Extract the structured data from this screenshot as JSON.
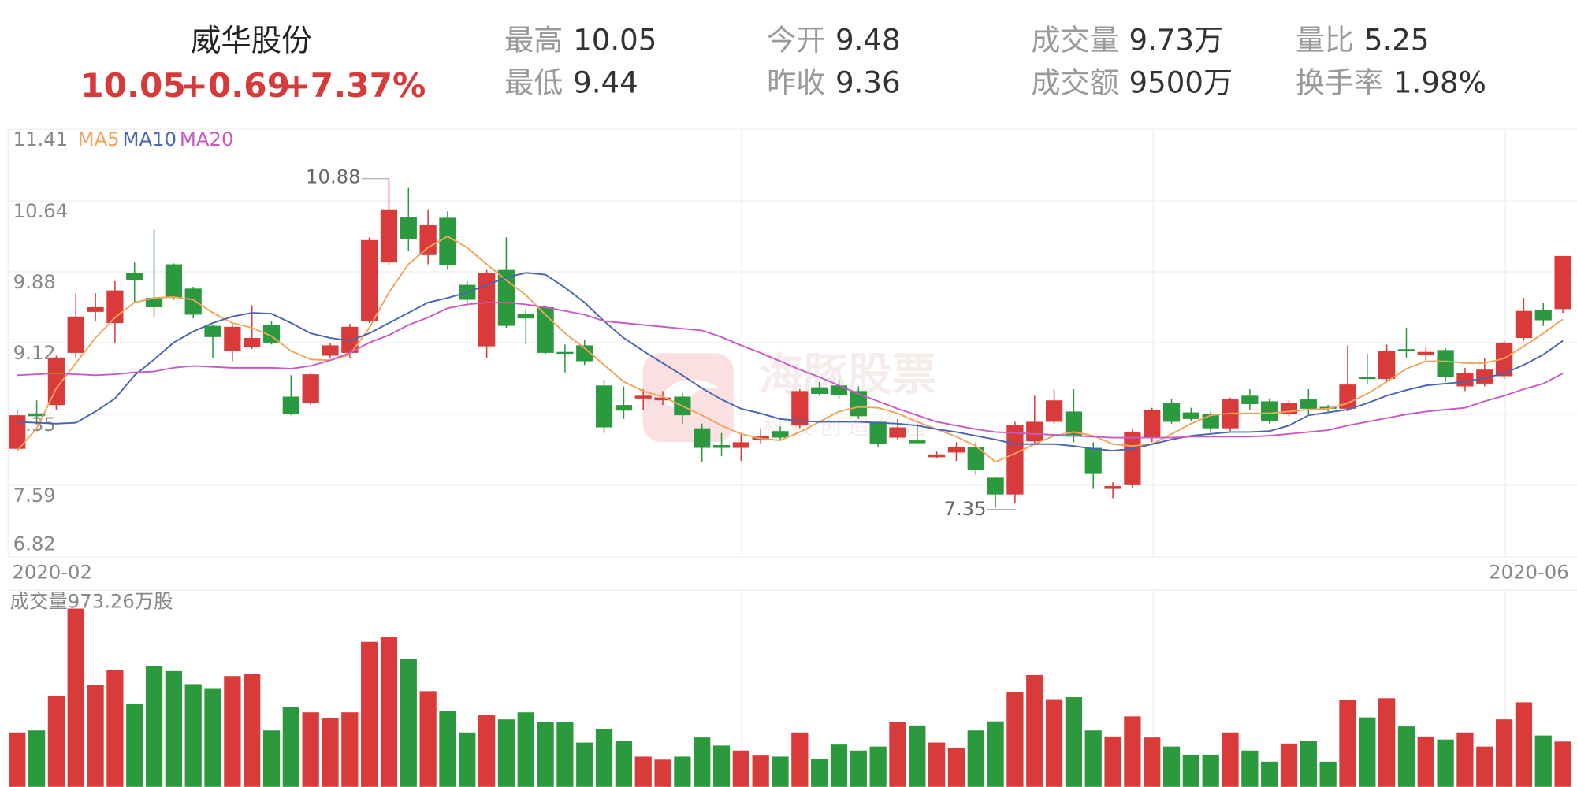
{
  "header": {
    "name": "威华股份",
    "price": "10.05",
    "change": "+0.69",
    "change_pct": "+7.37%",
    "stats": [
      {
        "label": "最高",
        "value": "10.05"
      },
      {
        "label": "最低",
        "value": "9.44"
      },
      {
        "label": "今开",
        "value": "9.48"
      },
      {
        "label": "昨收",
        "value": "9.36"
      },
      {
        "label": "成交量",
        "value": "9.73万"
      },
      {
        "label": "成交额",
        "value": "9500万"
      },
      {
        "label": "量比",
        "value": "5.25"
      },
      {
        "label": "换手率",
        "value": "1.98%"
      }
    ]
  },
  "watermark": {
    "title": "海豚股票",
    "subtitle": "科技创造价值"
  },
  "chart_data": {
    "type": "candlestick",
    "up_color": "#d93a3a",
    "down_color": "#2b9a3f",
    "ylim": [
      6.82,
      11.41
    ],
    "yticks": [
      11.41,
      10.64,
      9.88,
      9.12,
      8.35,
      7.59,
      6.82
    ],
    "grid": true,
    "x_labels": [
      "2020-02",
      "2020-06"
    ],
    "high_label": 10.88,
    "low_label": 7.35,
    "open": [
      7.98,
      8.36,
      8.45,
      9.01,
      9.45,
      9.33,
      9.87,
      9.6,
      9.96,
      9.7,
      9.3,
      9.03,
      9.07,
      9.31,
      8.54,
      8.47,
      8.98,
      9.01,
      9.35,
      9.98,
      10.47,
      10.06,
      10.46,
      9.74,
      9.08,
      9.9,
      9.43,
      9.5,
      9.02,
      9.09,
      8.66,
      8.45,
      8.52,
      8.5,
      8.54,
      8.2,
      8.02,
      7.99,
      8.07,
      8.17,
      8.23,
      8.64,
      8.66,
      8.6,
      8.27,
      8.1,
      8.07,
      7.89,
      7.94,
      8.0,
      7.67,
      7.49,
      8.06,
      8.27,
      8.38,
      7.99,
      7.55,
      7.59,
      8.1,
      8.47,
      8.37,
      8.35,
      8.2,
      8.55,
      8.49,
      8.35,
      8.51,
      8.43,
      8.41,
      8.75,
      8.73,
      9.05,
      8.99,
      9.04,
      8.65,
      8.68,
      8.76,
      9.17,
      9.47,
      9.48
    ],
    "close": [
      8.34,
      8.33,
      8.96,
      9.4,
      9.5,
      9.68,
      9.79,
      9.5,
      9.6,
      9.42,
      9.18,
      9.29,
      9.17,
      9.12,
      8.35,
      8.78,
      9.09,
      9.29,
      10.22,
      10.55,
      10.23,
      10.38,
      9.95,
      9.58,
      9.87,
      9.3,
      9.38,
      9.01,
      9.0,
      8.92,
      8.21,
      8.39,
      8.55,
      8.53,
      8.34,
      7.99,
      7.99,
      8.05,
      8.12,
      8.1,
      8.6,
      8.57,
      8.56,
      8.33,
      8.03,
      8.21,
      8.04,
      7.92,
      8.0,
      7.75,
      7.49,
      8.24,
      8.27,
      8.5,
      8.11,
      7.71,
      7.58,
      8.16,
      8.4,
      8.27,
      8.3,
      8.2,
      8.51,
      8.46,
      8.28,
      8.47,
      8.41,
      8.41,
      8.67,
      8.73,
      9.03,
      9.03,
      9.02,
      8.75,
      8.79,
      8.83,
      9.12,
      9.46,
      9.36,
      10.05
    ],
    "high": [
      8.4,
      8.5,
      8.98,
      9.65,
      9.65,
      9.78,
      9.98,
      10.33,
      9.97,
      9.72,
      9.31,
      9.32,
      9.52,
      9.35,
      8.77,
      8.8,
      9.12,
      9.32,
      10.25,
      10.88,
      10.78,
      10.55,
      10.53,
      9.78,
      9.9,
      10.25,
      9.48,
      9.52,
      9.1,
      9.15,
      8.72,
      8.65,
      8.62,
      8.6,
      8.58,
      8.25,
      8.15,
      8.15,
      8.2,
      8.22,
      8.62,
      8.7,
      8.72,
      8.65,
      8.28,
      8.3,
      8.25,
      7.95,
      8.05,
      8.05,
      7.68,
      8.27,
      8.55,
      8.62,
      8.62,
      8.05,
      7.62,
      8.19,
      8.42,
      8.52,
      8.42,
      8.38,
      8.53,
      8.62,
      8.52,
      8.5,
      8.62,
      8.45,
      9.09,
      9.0,
      9.1,
      9.28,
      9.08,
      9.06,
      8.85,
      8.95,
      9.14,
      9.6,
      9.55,
      10.05
    ],
    "low": [
      7.96,
      8.25,
      8.4,
      8.95,
      9.35,
      9.12,
      9.55,
      9.4,
      9.58,
      9.38,
      8.95,
      8.92,
      9.05,
      9.1,
      8.34,
      8.45,
      8.95,
      8.95,
      9.33,
      9.95,
      10.1,
      9.96,
      9.9,
      9.55,
      8.95,
      9.28,
      9.1,
      9.0,
      8.8,
      8.88,
      8.15,
      8.3,
      8.4,
      8.45,
      8.25,
      7.84,
      7.9,
      7.85,
      8.03,
      8.08,
      8.2,
      8.55,
      8.52,
      8.3,
      8.0,
      8.08,
      8.03,
      7.88,
      7.85,
      7.7,
      7.35,
      7.4,
      8.03,
      8.25,
      8.05,
      7.55,
      7.45,
      7.56,
      8.05,
      8.25,
      8.28,
      8.15,
      8.17,
      8.4,
      8.25,
      8.33,
      8.35,
      8.38,
      8.38,
      8.68,
      8.7,
      8.95,
      8.93,
      8.7,
      8.6,
      8.65,
      8.73,
      9.14,
      9.3,
      9.44
    ],
    "series": [
      {
        "name": "MA5",
        "color": "#f3a35a",
        "values": [
          7.96,
          8.2,
          8.63,
          8.9,
          9.17,
          9.39,
          9.55,
          9.6,
          9.61,
          9.58,
          9.44,
          9.33,
          9.28,
          9.19,
          9.03,
          8.94,
          8.93,
          8.99,
          9.28,
          9.66,
          9.96,
          10.14,
          10.26,
          10.14,
          9.96,
          9.79,
          9.63,
          9.42,
          9.22,
          9.06,
          8.88,
          8.7,
          8.6,
          8.54,
          8.44,
          8.34,
          8.23,
          8.14,
          8.09,
          8.07,
          8.16,
          8.27,
          8.38,
          8.43,
          8.42,
          8.36,
          8.27,
          8.19,
          8.11,
          8.01,
          7.84,
          7.93,
          8.03,
          8.12,
          8.16,
          8.12,
          8.03,
          8.01,
          8.03,
          8.14,
          8.25,
          8.34,
          8.36,
          8.36,
          8.36,
          8.38,
          8.4,
          8.41,
          8.47,
          8.57,
          8.7,
          8.84,
          8.92,
          8.92,
          8.9,
          8.9,
          8.95,
          9.08,
          9.22,
          9.37
        ]
      },
      {
        "name": "MA10",
        "color": "#4a64b4",
        "values": [
          8.27,
          8.26,
          8.25,
          8.26,
          8.38,
          8.52,
          8.77,
          8.94,
          9.12,
          9.24,
          9.33,
          9.4,
          9.44,
          9.43,
          9.33,
          9.22,
          9.17,
          9.14,
          9.22,
          9.33,
          9.44,
          9.55,
          9.6,
          9.66,
          9.74,
          9.82,
          9.87,
          9.85,
          9.71,
          9.55,
          9.35,
          9.17,
          9.03,
          8.9,
          8.77,
          8.63,
          8.51,
          8.41,
          8.36,
          8.3,
          8.28,
          8.27,
          8.27,
          8.27,
          8.26,
          8.25,
          8.23,
          8.19,
          8.16,
          8.12,
          8.08,
          8.03,
          8.03,
          8.03,
          8.01,
          7.98,
          7.96,
          7.98,
          8.03,
          8.08,
          8.12,
          8.14,
          8.16,
          8.16,
          8.17,
          8.23,
          8.34,
          8.37,
          8.4,
          8.47,
          8.55,
          8.61,
          8.66,
          8.68,
          8.7,
          8.74,
          8.79,
          8.88,
          8.99,
          9.14
        ]
      },
      {
        "name": "MA20",
        "color": "#c95ac4",
        "values": [
          8.77,
          8.78,
          8.79,
          8.78,
          8.77,
          8.78,
          8.8,
          8.81,
          8.85,
          8.87,
          8.86,
          8.85,
          8.85,
          8.85,
          8.84,
          8.87,
          8.93,
          9.01,
          9.12,
          9.2,
          9.31,
          9.39,
          9.49,
          9.53,
          9.55,
          9.55,
          9.53,
          9.5,
          9.46,
          9.42,
          9.35,
          9.33,
          9.31,
          9.29,
          9.27,
          9.25,
          9.18,
          9.09,
          9.01,
          8.92,
          8.83,
          8.75,
          8.66,
          8.57,
          8.49,
          8.41,
          8.34,
          8.27,
          8.23,
          8.19,
          8.16,
          8.15,
          8.14,
          8.13,
          8.12,
          8.11,
          8.1,
          8.1,
          8.1,
          8.1,
          8.11,
          8.11,
          8.11,
          8.11,
          8.12,
          8.14,
          8.16,
          8.18,
          8.23,
          8.27,
          8.31,
          8.35,
          8.38,
          8.4,
          8.42,
          8.49,
          8.55,
          8.62,
          8.68,
          8.79
        ]
      }
    ],
    "volume": {
      "label": "成交量973.26万股",
      "ylim": [
        0,
        3900
      ],
      "values": [
        1168,
        1211,
        1947,
        3829,
        2185,
        2509,
        1774,
        2596,
        2487,
        2206,
        2120,
        2379,
        2423,
        1211,
        1709,
        1601,
        1471,
        1601,
        3115,
        3223,
        2747,
        2055,
        1622,
        1168,
        1536,
        1449,
        1601,
        1384,
        1384,
        952,
        1233,
        995,
        649,
        584,
        649,
        1060,
        887,
        779,
        671,
        649,
        1168,
        606,
        908,
        779,
        865,
        1384,
        1319,
        952,
        844,
        1211,
        1406,
        2033,
        2401,
        1882,
        1925,
        1211,
        1082,
        1514,
        1060,
        865,
        692,
        692,
        1168,
        779,
        541,
        930,
        995,
        541,
        1860,
        1492,
        1903,
        1298,
        1082,
        1017,
        1168,
        865,
        1449,
        1817,
        1103,
        973.26
      ]
    }
  }
}
